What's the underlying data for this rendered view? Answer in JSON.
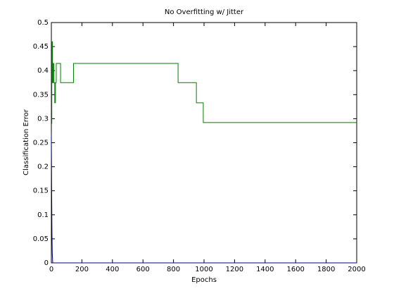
{
  "chart_data": {
    "type": "line",
    "title": "No Overfitting w/ Jitter",
    "x_label": "Epochs",
    "y_label": "Classification Error",
    "xlim": [
      0,
      2000
    ],
    "ylim": [
      0,
      0.5
    ],
    "xticks": [
      0,
      200,
      400,
      600,
      800,
      1000,
      1200,
      1400,
      1600,
      1800,
      2000
    ],
    "yticks": [
      0,
      0.05,
      0.1,
      0.15,
      0.2,
      0.25,
      0.3,
      0.35,
      0.4,
      0.45,
      0.5
    ],
    "series": [
      {
        "color": "#00008b",
        "x": [
          0,
          2,
          4,
          6,
          9,
          2000
        ],
        "values": [
          0.27,
          0.15,
          0.06,
          0.02,
          0,
          0
        ]
      },
      {
        "color": "#007f00",
        "x": [
          0,
          3,
          3,
          7,
          7,
          12,
          12,
          17,
          17,
          22,
          22,
          27,
          27,
          32,
          32,
          60,
          60,
          145,
          145,
          830,
          830,
          950,
          950,
          995,
          995,
          2000
        ],
        "values": [
          0.29,
          0.29,
          0.46,
          0.46,
          0.375,
          0.375,
          0.415,
          0.415,
          0.375,
          0.375,
          0.333,
          0.333,
          0.375,
          0.375,
          0.415,
          0.415,
          0.375,
          0.375,
          0.415,
          0.415,
          0.375,
          0.375,
          0.333,
          0.333,
          0.292,
          0.292
        ]
      }
    ]
  }
}
